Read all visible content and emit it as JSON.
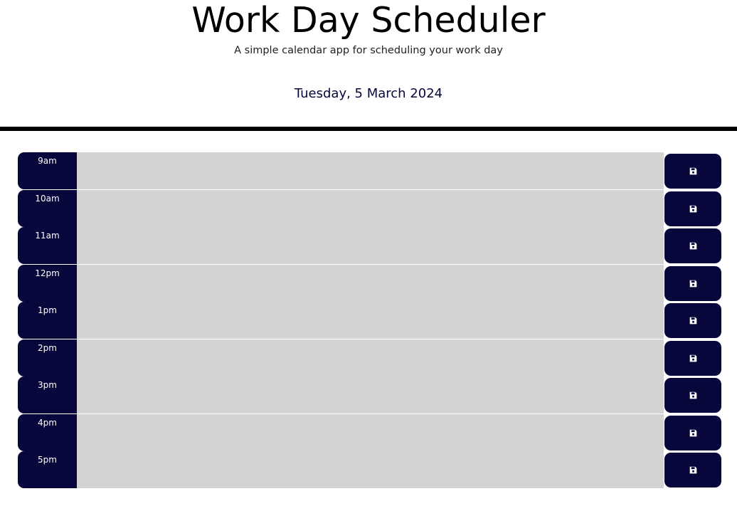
{
  "header": {
    "title": "Work Day Scheduler",
    "subtitle": "A simple calendar app for scheduling your work day",
    "current_date": "Tuesday, 5 March 2024"
  },
  "colors": {
    "accent": "#07073c",
    "past": "#d3d3d3",
    "icon": "#ffffff"
  },
  "save_icon": "floppy-disk-icon",
  "rows": [
    {
      "hour": "9am",
      "text": ""
    },
    {
      "hour": "10am",
      "text": ""
    },
    {
      "hour": "11am",
      "text": ""
    },
    {
      "hour": "12pm",
      "text": ""
    },
    {
      "hour": "1pm",
      "text": ""
    },
    {
      "hour": "2pm",
      "text": ""
    },
    {
      "hour": "3pm",
      "text": ""
    },
    {
      "hour": "4pm",
      "text": ""
    },
    {
      "hour": "5pm",
      "text": ""
    }
  ]
}
